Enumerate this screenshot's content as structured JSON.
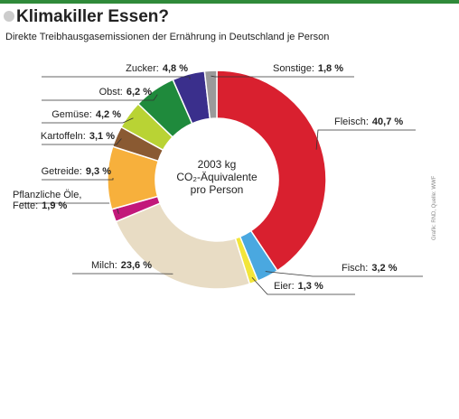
{
  "chart_data": {
    "type": "pie",
    "donut": true,
    "title": "Klimakiller Essen?",
    "subtitle": "Direkte Treibhausgasemissionen der Ernährung in Deutschland je Person",
    "center_text": [
      "2003 kg",
      "CO₂-Äquivalente",
      "pro Person"
    ],
    "source": "Grafik: RND, Quelle: WWF",
    "categories": [
      "Fleisch",
      "Fisch",
      "Eier",
      "Milch",
      "Pflanzliche Öle, Fette",
      "Getreide",
      "Kartoffeln",
      "Gemüse",
      "Obst",
      "Zucker",
      "Sonstige"
    ],
    "values": [
      40.7,
      3.2,
      1.3,
      23.6,
      1.9,
      9.3,
      3.1,
      4.2,
      6.2,
      4.8,
      1.8
    ],
    "value_labels": [
      "40,7 %",
      "3,2 %",
      "1,3 %",
      "23,6 %",
      "1,9 %",
      "9,3 %",
      "3,1 %",
      "4,2 %",
      "6,2 %",
      "4,8 %",
      "1,8 %"
    ],
    "colors": [
      "#d9202f",
      "#4aa8e0",
      "#f2e53a",
      "#e8dcc4",
      "#c2187a",
      "#f7b03c",
      "#8a5a32",
      "#b9d334",
      "#1f8a3c",
      "#3a2f8c",
      "#9a9a9a"
    ]
  }
}
